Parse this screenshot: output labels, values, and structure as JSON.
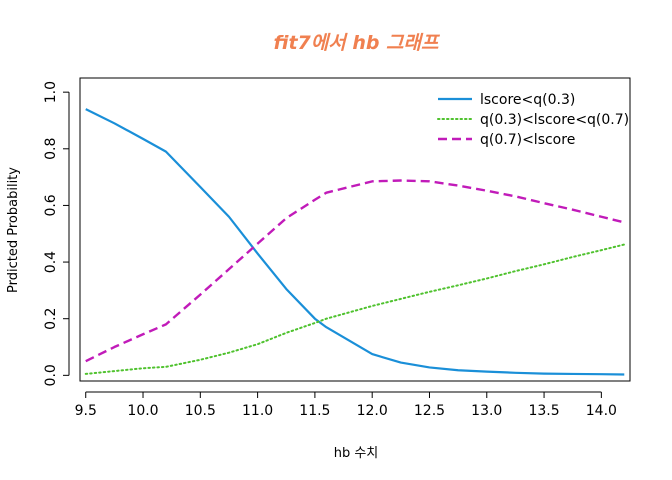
{
  "chart_data": {
    "type": "line",
    "title": "fit7에서 hb 그래프",
    "xlabel": "hb 수치",
    "ylabel": "Prdicted  Probability",
    "xlim": [
      9.45,
      14.25
    ],
    "ylim": [
      -0.02,
      1.05
    ],
    "x_ticks": [
      9.5,
      10.0,
      10.5,
      11.0,
      11.5,
      12.0,
      12.5,
      13.0,
      13.5,
      14.0
    ],
    "x_tick_labels": [
      "9.5",
      "10.0",
      "10.5",
      "11.0",
      "11.5",
      "12.0",
      "12.5",
      "13.0",
      "13.5",
      "14.0"
    ],
    "y_ticks": [
      0.0,
      0.2,
      0.4,
      0.6,
      0.8,
      1.0
    ],
    "y_tick_labels": [
      "0.0",
      "0.2",
      "0.4",
      "0.6",
      "0.8",
      "1.0"
    ],
    "grid": false,
    "legend_position": "top-right",
    "x": [
      9.5,
      9.75,
      10.0,
      10.2,
      10.5,
      10.75,
      11.0,
      11.25,
      11.5,
      11.6,
      12.0,
      12.25,
      12.5,
      12.75,
      13.0,
      13.25,
      13.5,
      13.75,
      14.0,
      14.2
    ],
    "series": [
      {
        "name": "lscore<q(0.3)",
        "color": "#1a8fd8",
        "dash": "solid",
        "values": [
          0.94,
          0.89,
          0.835,
          0.79,
          0.665,
          0.56,
          0.43,
          0.305,
          0.2,
          0.17,
          0.075,
          0.045,
          0.028,
          0.018,
          0.013,
          0.009,
          0.006,
          0.005,
          0.004,
          0.003
        ]
      },
      {
        "name": "q(0.3)<lscore<q(0.7)",
        "color": "#4fc22e",
        "dash": "dotted",
        "values": [
          0.005,
          0.015,
          0.025,
          0.03,
          0.055,
          0.08,
          0.11,
          0.15,
          0.185,
          0.2,
          0.245,
          0.27,
          0.295,
          0.318,
          0.342,
          0.368,
          0.392,
          0.418,
          0.442,
          0.462
        ]
      },
      {
        "name": "q(0.7)<lscore",
        "color": "#c11bb9",
        "dash": "dashed",
        "values": [
          0.05,
          0.1,
          0.145,
          0.18,
          0.285,
          0.375,
          0.465,
          0.555,
          0.62,
          0.645,
          0.685,
          0.688,
          0.685,
          0.67,
          0.652,
          0.632,
          0.608,
          0.585,
          0.56,
          0.54
        ]
      }
    ],
    "title_color": "#f08050"
  }
}
